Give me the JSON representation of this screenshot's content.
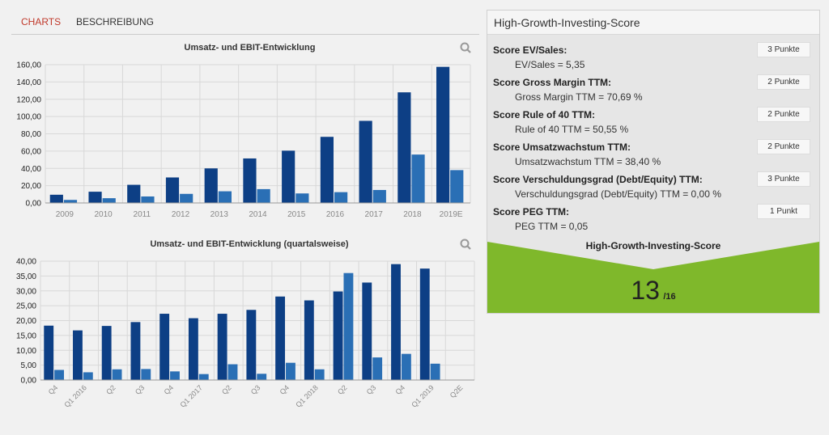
{
  "tabs": [
    {
      "label": "CHARTS",
      "active": true
    },
    {
      "label": "BESCHREIBUNG",
      "active": false
    }
  ],
  "colors": {
    "revenue": "#0d3f85",
    "ebit": "#2a6fb5",
    "accent_tab": "#c0392b",
    "score_band": "#7fb82b"
  },
  "chart_data": [
    {
      "type": "bar",
      "title": "Umsatz- und EBIT-Entwicklung",
      "categories": [
        "2009",
        "2010",
        "2011",
        "2012",
        "2013",
        "2014",
        "2015",
        "2016",
        "2017",
        "2018",
        "2019E"
      ],
      "series": [
        {
          "values": [
            9.5,
            13,
            21,
            29.5,
            40,
            51.5,
            60.5,
            76.5,
            95,
            128,
            157.5
          ]
        },
        {
          "values": [
            3.5,
            5.5,
            7.5,
            10.5,
            13.5,
            16,
            11,
            12.5,
            15,
            56,
            38
          ]
        }
      ],
      "ylim": [
        0,
        160
      ],
      "yticks": [
        "0,00",
        "20,00",
        "40,00",
        "60,00",
        "80,00",
        "100,00",
        "120,00",
        "140,00",
        "160,00"
      ],
      "grid": true,
      "xlabel": "",
      "ylabel": ""
    },
    {
      "type": "bar",
      "title": "Umsatz- und EBIT-Entwicklung (quartalsweise)",
      "categories": [
        "Q4",
        "Q1 2016",
        "Q2",
        "Q3",
        "Q4",
        "Q1 2017",
        "Q2",
        "Q3",
        "Q4",
        "Q1 2018",
        "Q2",
        "Q3",
        "Q4",
        "Q1 2019",
        "Q2E"
      ],
      "series": [
        {
          "values": [
            18.3,
            16.7,
            18.2,
            19.5,
            22.3,
            20.8,
            22.3,
            23.6,
            28.1,
            26.8,
            29.8,
            32.8,
            39,
            37.5,
            0
          ]
        },
        {
          "values": [
            3.4,
            2.6,
            3.6,
            3.7,
            2.9,
            2,
            5.3,
            2.1,
            5.8,
            3.6,
            36,
            7.6,
            8.8,
            5.5,
            0
          ]
        }
      ],
      "ylim": [
        0,
        40
      ],
      "yticks": [
        "0,00",
        "5,00",
        "10,00",
        "15,00",
        "20,00",
        "25,00",
        "30,00",
        "35,00",
        "40,00"
      ],
      "grid": true,
      "xlabel": "",
      "ylabel": ""
    }
  ],
  "score_panel": {
    "title": "High-Growth-Investing-Score",
    "items": [
      {
        "heading": "Score EV/Sales:",
        "detail": "EV/Sales = 5,35",
        "points": "3 Punkte"
      },
      {
        "heading": "Score Gross Margin TTM:",
        "detail": "Gross Margin TTM = 70,69 %",
        "points": "2 Punkte"
      },
      {
        "heading": "Score Rule of 40 TTM:",
        "detail": "Rule of 40 TTM = 50,55 %",
        "points": "2 Punkte"
      },
      {
        "heading": "Score Umsatzwachstum TTM:",
        "detail": "Umsatzwachstum TTM = 38,40 %",
        "points": "2 Punkte"
      },
      {
        "heading": "Score Verschuldungsgrad (Debt/Equity) TTM:",
        "detail": "Verschuldungsgrad (Debt/Equity) TTM = 0,00 %",
        "points": "3 Punkte"
      },
      {
        "heading": "Score PEG TTM:",
        "detail": "PEG TTM = 0,05",
        "points": "1 Punkt"
      }
    ],
    "total_label": "High-Growth-Investing-Score",
    "total": "13",
    "max": "/16"
  }
}
